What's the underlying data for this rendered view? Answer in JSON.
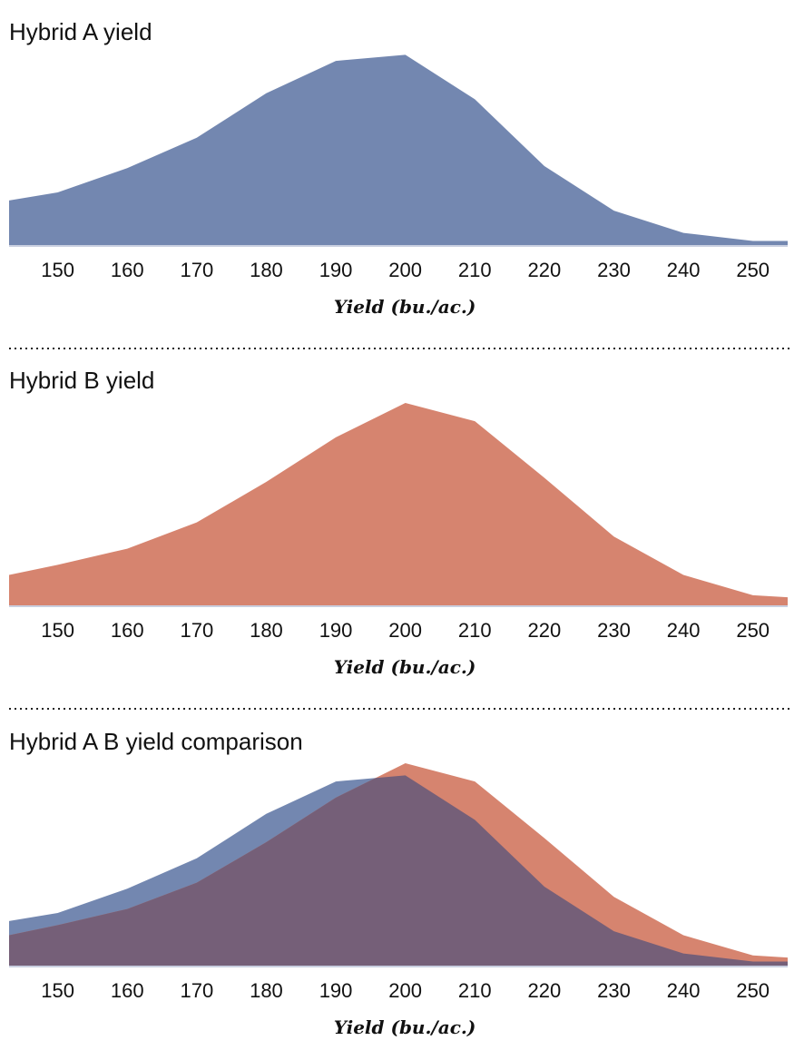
{
  "colors": {
    "hybrid_a": "#7387b0",
    "hybrid_b": "#d6846f",
    "overlap": "#755f78"
  },
  "chart_data": [
    {
      "type": "area",
      "title": "Hybrid A yield",
      "xlabel": "Yield (bu./ac.)",
      "ylabel": "",
      "xlim": [
        143,
        255
      ],
      "ylim": [
        0,
        1
      ],
      "grid": false,
      "xticks": [
        150,
        160,
        170,
        180,
        190,
        200,
        210,
        220,
        230,
        240,
        250
      ],
      "x": [
        143,
        150,
        160,
        170,
        180,
        190,
        200,
        210,
        220,
        230,
        240,
        250,
        255
      ],
      "series": [
        {
          "key": "hybrid_a",
          "values": [
            0.22,
            0.26,
            0.38,
            0.53,
            0.75,
            0.91,
            0.94,
            0.72,
            0.39,
            0.17,
            0.06,
            0.02,
            0.02
          ]
        }
      ]
    },
    {
      "type": "area",
      "title": "Hybrid B yield",
      "xlabel": "Yield (bu./ac.)",
      "ylabel": "",
      "xlim": [
        143,
        255
      ],
      "ylim": [
        0,
        1
      ],
      "grid": false,
      "xticks": [
        150,
        160,
        170,
        180,
        190,
        200,
        210,
        220,
        230,
        240,
        250
      ],
      "x": [
        143,
        150,
        160,
        170,
        180,
        190,
        200,
        210,
        220,
        230,
        240,
        250,
        255
      ],
      "series": [
        {
          "key": "hybrid_b",
          "values": [
            0.15,
            0.2,
            0.28,
            0.41,
            0.61,
            0.83,
            1.0,
            0.91,
            0.63,
            0.34,
            0.15,
            0.05,
            0.04
          ]
        }
      ]
    },
    {
      "type": "area",
      "title": "Hybrid A B yield comparison",
      "xlabel": "Yield (bu./ac.)",
      "ylabel": "",
      "xlim": [
        143,
        255
      ],
      "ylim": [
        0,
        1
      ],
      "grid": false,
      "xticks": [
        150,
        160,
        170,
        180,
        190,
        200,
        210,
        220,
        230,
        240,
        250
      ],
      "x": [
        143,
        150,
        160,
        170,
        180,
        190,
        200,
        210,
        220,
        230,
        240,
        250,
        255
      ],
      "series": [
        {
          "key": "hybrid_a",
          "values": [
            0.22,
            0.26,
            0.38,
            0.53,
            0.75,
            0.91,
            0.94,
            0.72,
            0.39,
            0.17,
            0.06,
            0.02,
            0.02
          ]
        },
        {
          "key": "hybrid_b",
          "values": [
            0.15,
            0.2,
            0.28,
            0.41,
            0.61,
            0.83,
            1.0,
            0.91,
            0.63,
            0.34,
            0.15,
            0.05,
            0.04
          ]
        }
      ]
    }
  ]
}
